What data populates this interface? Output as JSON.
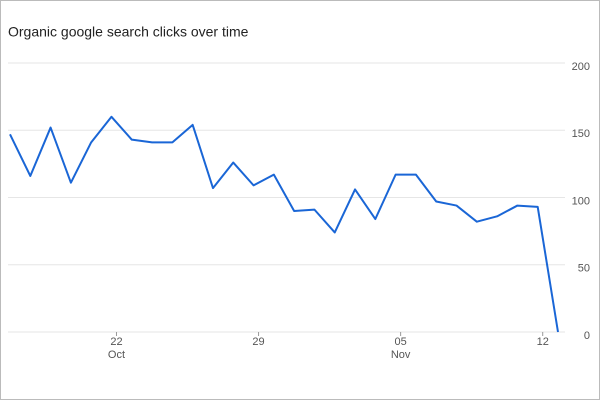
{
  "chart_data": {
    "type": "line",
    "title": "Organic google search clicks over time",
    "categories": [
      null,
      null,
      null,
      null,
      null,
      "22",
      null,
      null,
      null,
      null,
      null,
      null,
      "29",
      null,
      null,
      null,
      null,
      null,
      null,
      "05",
      null,
      null,
      null,
      null,
      null,
      null,
      "12",
      null
    ],
    "category_months": [
      null,
      null,
      null,
      null,
      null,
      "Oct",
      null,
      null,
      null,
      null,
      null,
      null,
      null,
      null,
      null,
      null,
      null,
      null,
      null,
      "Nov",
      null,
      null,
      null,
      null,
      null,
      null,
      null,
      null
    ],
    "values": [
      147,
      116,
      152,
      111,
      141,
      160,
      143,
      141,
      141,
      154,
      107,
      126,
      109,
      117,
      90,
      91,
      74,
      106,
      84,
      117,
      117,
      97,
      94,
      82,
      86,
      94,
      93,
      0
    ],
    "color": "#1a66d6",
    "ylim": [
      0,
      200
    ],
    "yticks": [
      0,
      50,
      100,
      150,
      200
    ],
    "grid": true
  }
}
